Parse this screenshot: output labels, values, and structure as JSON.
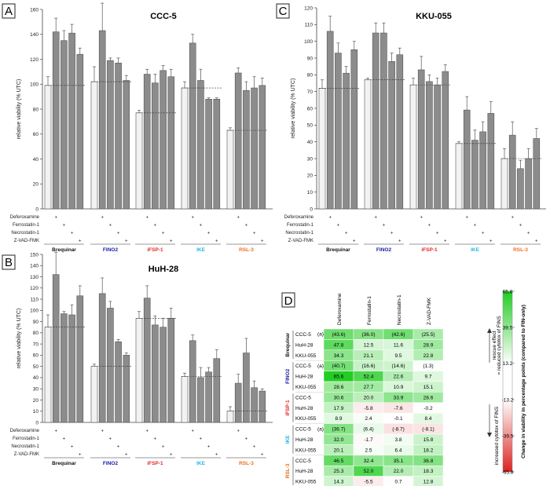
{
  "panels": [
    {
      "letter": "A",
      "title": "CCC-5",
      "ylabel": "relative viability (% UTC)",
      "ylim": [
        0,
        160
      ],
      "yticks": [
        0,
        20,
        40,
        60,
        80,
        100,
        120,
        140,
        160
      ]
    },
    {
      "letter": "C",
      "title": "KKU-055",
      "ylabel": "relative viability (% UTC)",
      "ylim": [
        0,
        120
      ],
      "yticks": [
        0,
        10,
        20,
        30,
        40,
        50,
        60,
        70,
        80,
        90,
        100,
        110,
        120
      ]
    },
    {
      "letter": "B",
      "title": "HuH-28",
      "ylabel": "relative viability (% UTC)",
      "ylim": [
        0,
        150
      ],
      "yticks": [
        0,
        10,
        20,
        30,
        40,
        50,
        60,
        70,
        80,
        90,
        100,
        110,
        120,
        130,
        140,
        150
      ]
    },
    {
      "letter": "D"
    }
  ],
  "treatments": [
    "Deferoxamine",
    "Ferrostatin-1",
    "Necrostatin-1",
    "Z-VAD-FMK"
  ],
  "plus": "+",
  "drugs": [
    {
      "name": "Brequinar",
      "color": "#111111"
    },
    {
      "name": "FINO2",
      "color": "#1a1aa8"
    },
    {
      "name": "iFSP-1",
      "color": "#e0262b"
    },
    {
      "name": "IKE",
      "color": "#27b3e0"
    },
    {
      "name": "RSL-3",
      "color": "#ec6f1e"
    }
  ],
  "chart_data": [
    {
      "type": "bar",
      "title": "CCC-5",
      "ylabel": "relative viability (% UTC)",
      "ylim": [
        0,
        160
      ],
      "categories": [
        "Brequinar",
        "FINO2",
        "iFSP-1",
        "IKE",
        "RSL-3"
      ],
      "series_names": [
        "FIN only",
        "+ Deferoxamine",
        "+ Ferrostatin-1",
        "+ Necrostatin-1",
        "+ Z-VAD-FMK"
      ],
      "values": [
        [
          99,
          142,
          135,
          141,
          124
        ],
        [
          102,
          143,
          119,
          117,
          103
        ],
        [
          77,
          108,
          101,
          111,
          106
        ],
        [
          97,
          133,
          103,
          88,
          88
        ],
        [
          63,
          109,
          95,
          97,
          99
        ]
      ],
      "errors": [
        [
          7,
          11,
          8,
          7,
          5
        ],
        [
          12,
          22,
          2,
          4,
          4
        ],
        [
          2,
          4,
          7,
          4,
          6
        ],
        [
          5,
          7,
          9,
          1,
          1
        ],
        [
          2,
          4,
          7,
          9,
          6
        ]
      ]
    },
    {
      "type": "bar",
      "title": "KKU-055",
      "ylabel": "relative viability (% UTC)",
      "ylim": [
        0,
        120
      ],
      "categories": [
        "Brequinar",
        "FINO2",
        "iFSP-1",
        "IKE",
        "RSL-3"
      ],
      "series_names": [
        "FIN only",
        "+ Deferoxamine",
        "+ Ferrostatin-1",
        "+ Necrostatin-1",
        "+ Z-VAD-FMK"
      ],
      "values": [
        [
          72,
          106,
          93,
          81,
          95
        ],
        [
          77,
          105,
          105,
          88,
          92
        ],
        [
          74,
          83,
          76,
          74,
          82
        ],
        [
          39,
          59,
          41,
          46,
          57
        ],
        [
          30,
          44,
          24,
          30,
          42
        ]
      ],
      "errors": [
        [
          5,
          9,
          6,
          4,
          5
        ],
        [
          1,
          6,
          6,
          5,
          4
        ],
        [
          4,
          8,
          4,
          4,
          4
        ],
        [
          1,
          8,
          6,
          6,
          7
        ],
        [
          6,
          8,
          5,
          6,
          6
        ]
      ]
    },
    {
      "type": "bar",
      "title": "HuH-28",
      "ylabel": "relative viability (% UTC)",
      "ylim": [
        0,
        150
      ],
      "categories": [
        "Brequinar",
        "FINO2",
        "iFSP-1",
        "IKE",
        "RSL-3"
      ],
      "series_names": [
        "FIN only",
        "+ Deferoxamine",
        "+ Ferrostatin-1",
        "+ Necrostatin-1",
        "+ Z-VAD-FMK"
      ],
      "values": [
        [
          85,
          132,
          97,
          96,
          113
        ],
        [
          50,
          115,
          102,
          72,
          60
        ],
        [
          93,
          111,
          87,
          85,
          93
        ],
        [
          41,
          73,
          40,
          45,
          57
        ],
        [
          10,
          35,
          62,
          31,
          28
        ]
      ],
      "errors": [
        [
          11,
          20,
          2,
          9,
          9
        ],
        [
          2,
          14,
          6,
          2,
          2
        ],
        [
          6,
          11,
          8,
          8,
          9
        ],
        [
          3,
          5,
          9,
          4,
          8
        ],
        [
          4,
          8,
          13,
          6,
          2
        ]
      ]
    },
    {
      "type": "heatmap",
      "title": "Change in viability in percentage points (compared to FIN-only)",
      "columns": [
        "Deferoxamine",
        "Ferrostatin-1",
        "Necrostatin-1",
        "Z-VAD-FMK"
      ],
      "groups": [
        {
          "drug": "Brequinar",
          "rows": [
            {
              "cell": "CCC-5",
              "note": "(a)",
              "values": [
                43.6,
                36.0,
                42.6,
                25.5
              ],
              "text": [
                "(43.6)",
                "(36.0)",
                "(42.6)",
                "(25.5)"
              ]
            },
            {
              "cell": "HuH-28",
              "values": [
                47.8,
                12.5,
                11.6,
                28.9
              ],
              "text": [
                "47.8",
                "12.5",
                "11.6",
                "28.9"
              ]
            },
            {
              "cell": "KKU-055",
              "values": [
                34.3,
                21.1,
                9.5,
                22.8
              ],
              "text": [
                "34.3",
                "21.1",
                "9.5",
                "22.8"
              ]
            }
          ]
        },
        {
          "drug": "FINO2",
          "rows": [
            {
              "cell": "CCC-5",
              "note": "(a)",
              "values": [
                40.7,
                16.6,
                14.6,
                1.3
              ],
              "text": [
                "(40.7)",
                "(16.6)",
                "(14.6)",
                "(1.3)"
              ]
            },
            {
              "cell": "HuH-28",
              "values": [
                65.6,
                52.4,
                22.6,
                9.7
              ],
              "text": [
                "65.6",
                "52.4",
                "22.6",
                "9.7"
              ]
            },
            {
              "cell": "KKU-055",
              "values": [
                28.6,
                27.7,
                10.9,
                15.1
              ],
              "text": [
                "28.6",
                "27.7",
                "10.9",
                "15.1"
              ]
            }
          ]
        },
        {
          "drug": "iFSP-1",
          "rows": [
            {
              "cell": "CCC-5",
              "values": [
                30.6,
                20.0,
                33.9,
                28.6
              ],
              "text": [
                "30.6",
                "20.0",
                "33.9",
                "28.6"
              ]
            },
            {
              "cell": "HuH-28",
              "values": [
                17.9,
                -5.8,
                -7.6,
                -0.2
              ],
              "text": [
                "17.9",
                "-5.8",
                "-7.6",
                "-0.2"
              ]
            },
            {
              "cell": "KKU-055",
              "values": [
                8.9,
                2.4,
                -0.1,
                8.4
              ],
              "text": [
                "8.9",
                "2.4",
                "-0.1",
                "8.4"
              ]
            }
          ]
        },
        {
          "drug": "IKE",
          "rows": [
            {
              "cell": "CCC-5",
              "note": "(a)",
              "values": [
                36.7,
                6.4,
                -8.7,
                -8.1
              ],
              "text": [
                "(36.7)",
                "(6.4)",
                "(-8.7)",
                "(-8.1)"
              ]
            },
            {
              "cell": "HuH-28",
              "values": [
                32.0,
                -1.7,
                3.8,
                15.8
              ],
              "text": [
                "32.0",
                "-1.7",
                "3.8",
                "15.8"
              ]
            },
            {
              "cell": "KKU-055",
              "values": [
                20.1,
                2.5,
                6.4,
                18.2
              ],
              "text": [
                "20.1",
                "2.5",
                "6.4",
                "18.2"
              ]
            }
          ]
        },
        {
          "drug": "RSL-3",
          "rows": [
            {
              "cell": "CCC-5",
              "values": [
                46.5,
                32.4,
                35.1,
                36.8
              ],
              "text": [
                "46.5",
                "32.4",
                "35.1",
                "36.8"
              ]
            },
            {
              "cell": "HuH-28",
              "values": [
                25.3,
                52.0,
                22.0,
                18.3
              ],
              "text": [
                "25.3",
                "52.0",
                "22.0",
                "18.3"
              ]
            },
            {
              "cell": "KKU-055",
              "values": [
                14.3,
                -5.5,
                0.7,
                12.8
              ],
              "text": [
                "14.3",
                "-5.5",
                "0.7",
                "12.8"
              ]
            }
          ]
        }
      ],
      "colorbar": {
        "ticks": [
          65.8,
          39.5,
          13.2,
          -13.2,
          -39.5,
          -65.8
        ],
        "tick_labels": [
          "65.8",
          "39.5",
          "13.2",
          "-13.2",
          "-39.5",
          "-65.8"
        ],
        "title": "Change in viability in percentage points (compared to FIN-only)",
        "pos_label_1": "rescue effect",
        "pos_label_2": "= reduced cytotox of FINS",
        "neg_label": "increased cytotox of FINS",
        "pos_color": "#22cc22",
        "neg_color": "#dd2222"
      }
    }
  ]
}
